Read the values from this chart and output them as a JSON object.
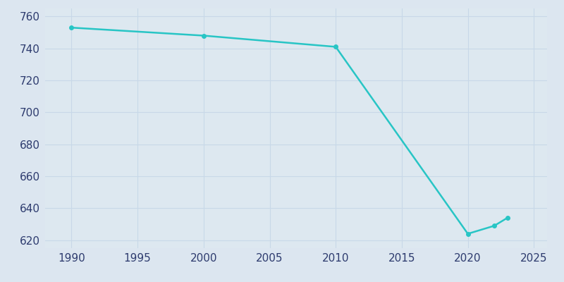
{
  "years": [
    1990,
    2000,
    2010,
    2020,
    2022,
    2023
  ],
  "population": [
    753,
    748,
    741,
    624,
    629,
    634
  ],
  "line_color": "#28c5c5",
  "marker": "o",
  "marker_size": 4,
  "line_width": 1.8,
  "fig_bg_color": "#dce6f0",
  "plot_bg_color": "#dde8f0",
  "grid_color": "#c8d8e8",
  "xlim": [
    1988,
    2026
  ],
  "ylim": [
    615,
    765
  ],
  "xticks": [
    1990,
    1995,
    2000,
    2005,
    2010,
    2015,
    2020,
    2025
  ],
  "yticks": [
    620,
    640,
    660,
    680,
    700,
    720,
    740,
    760
  ],
  "tick_label_color": "#2d3b6e",
  "tick_label_size": 11
}
